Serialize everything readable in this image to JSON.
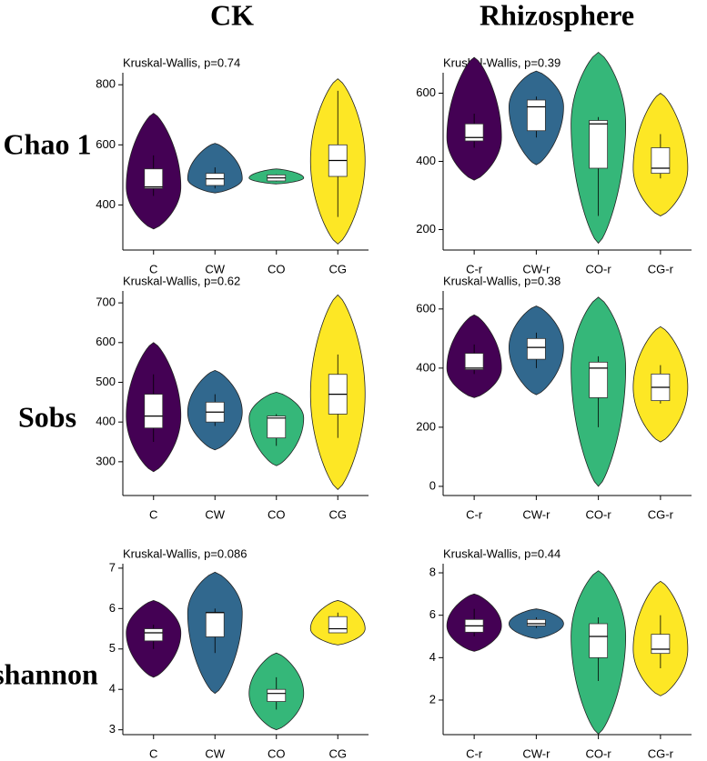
{
  "column_titles": [
    "CK",
    "Rhizosphere"
  ],
  "row_labels": [
    "Chao 1",
    "Sobs",
    "shannon"
  ],
  "chart_data": [
    {
      "type": "violin",
      "annotation": "Kruskal-Wallis, p=0.74",
      "categories": [
        "C",
        "CW",
        "CO",
        "CG"
      ],
      "colors": [
        "#440154",
        "#31688e",
        "#35b779",
        "#fde725"
      ],
      "ylim": [
        250,
        840
      ],
      "yticks": [
        400,
        600,
        800
      ],
      "violin": [
        [
          320,
          705
        ],
        [
          440,
          605
        ],
        [
          470,
          520
        ],
        [
          270,
          820
        ]
      ],
      "box_stats": [
        [
          430,
          455,
          460,
          520,
          565
        ],
        [
          455,
          465,
          487,
          505,
          525
        ],
        [
          478,
          480,
          490,
          500,
          502
        ],
        [
          360,
          495,
          548,
          600,
          780
        ]
      ]
    },
    {
      "type": "violin",
      "annotation": "Kruskal-Wallis, p=0.39",
      "categories": [
        "C-r",
        "CW-r",
        "CO-r",
        "CG-r"
      ],
      "colors": [
        "#440154",
        "#31688e",
        "#35b779",
        "#fde725"
      ],
      "ylim": [
        140,
        660
      ],
      "yticks": [
        200,
        400,
        600
      ],
      "violin": [
        [
          345,
          705
        ],
        [
          390,
          665
        ],
        [
          160,
          720
        ],
        [
          240,
          600
        ]
      ],
      "box_stats": [
        [
          440,
          460,
          470,
          510,
          540
        ],
        [
          470,
          490,
          560,
          580,
          590
        ],
        [
          240,
          380,
          510,
          520,
          530
        ],
        [
          350,
          365,
          380,
          440,
          480
        ]
      ]
    },
    {
      "type": "violin",
      "annotation": "Kruskal-Wallis, p=0.62",
      "categories": [
        "C",
        "CW",
        "CO",
        "CG"
      ],
      "colors": [
        "#440154",
        "#31688e",
        "#35b779",
        "#fde725"
      ],
      "ylim": [
        215,
        730
      ],
      "yticks": [
        300,
        400,
        500,
        600,
        700
      ],
      "violin": [
        [
          275,
          600
        ],
        [
          330,
          530
        ],
        [
          290,
          475
        ],
        [
          230,
          720
        ]
      ],
      "box_stats": [
        [
          350,
          385,
          415,
          470,
          520
        ],
        [
          390,
          400,
          425,
          450,
          470
        ],
        [
          340,
          360,
          410,
          415,
          420
        ],
        [
          360,
          420,
          470,
          520,
          570
        ]
      ]
    },
    {
      "type": "violin",
      "annotation": "Kruskal-Wallis, p=0.38",
      "categories": [
        "C-r",
        "CW-r",
        "CO-r",
        "CG-r"
      ],
      "colors": [
        "#440154",
        "#31688e",
        "#35b779",
        "#fde725"
      ],
      "ylim": [
        -31,
        661
      ],
      "yticks": [
        0,
        200,
        400,
        600
      ],
      "violin": [
        [
          300,
          580
        ],
        [
          310,
          610
        ],
        [
          0,
          640
        ],
        [
          150,
          540
        ]
      ],
      "box_stats": [
        [
          380,
          395,
          400,
          450,
          480
        ],
        [
          400,
          430,
          470,
          500,
          520
        ],
        [
          200,
          300,
          400,
          420,
          440
        ],
        [
          280,
          290,
          335,
          380,
          410
        ]
      ]
    },
    {
      "type": "violin",
      "annotation": "Kruskal-Wallis, p=0.086",
      "categories": [
        "C",
        "CW",
        "CO",
        "CG"
      ],
      "colors": [
        "#440154",
        "#31688e",
        "#35b779",
        "#fde725"
      ],
      "ylim": [
        2.88,
        7.11
      ],
      "yticks": [
        3,
        4,
        5,
        6,
        7
      ],
      "violin": [
        [
          4.3,
          6.2
        ],
        [
          3.9,
          6.9
        ],
        [
          3.0,
          4.9
        ],
        [
          5.1,
          6.2
        ]
      ],
      "box_stats": [
        [
          5.0,
          5.2,
          5.4,
          5.5,
          5.6
        ],
        [
          4.9,
          5.3,
          5.9,
          5.9,
          6.0
        ],
        [
          3.5,
          3.7,
          3.9,
          4.0,
          4.3
        ],
        [
          5.4,
          5.4,
          5.5,
          5.8,
          5.9
        ]
      ]
    },
    {
      "type": "violin",
      "annotation": "Kruskal-Wallis, p=0.44",
      "categories": [
        "C-r",
        "CW-r",
        "CO-r",
        "CG-r"
      ],
      "colors": [
        "#440154",
        "#31688e",
        "#35b779",
        "#fde725"
      ],
      "ylim": [
        0.37,
        8.43
      ],
      "yticks": [
        2,
        4,
        6,
        8
      ],
      "violin": [
        [
          4.3,
          7.0
        ],
        [
          4.9,
          6.3
        ],
        [
          0.4,
          8.1
        ],
        [
          2.2,
          7.6
        ]
      ],
      "box_stats": [
        [
          5.0,
          5.2,
          5.5,
          5.8,
          6.3
        ],
        [
          5.4,
          5.5,
          5.6,
          5.8,
          5.9
        ],
        [
          2.9,
          4.0,
          5.0,
          5.6,
          5.9
        ],
        [
          3.5,
          4.2,
          4.4,
          5.1,
          6.0
        ]
      ]
    }
  ]
}
